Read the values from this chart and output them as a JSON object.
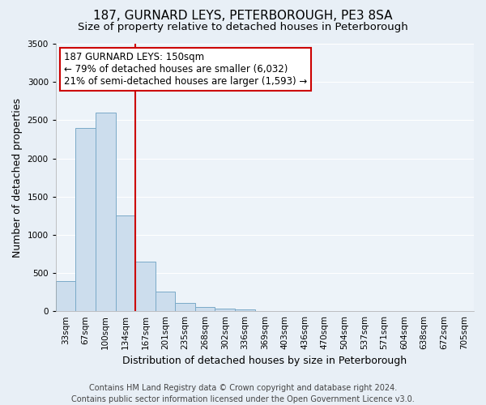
{
  "title": "187, GURNARD LEYS, PETERBOROUGH, PE3 8SA",
  "subtitle": "Size of property relative to detached houses in Peterborough",
  "xlabel": "Distribution of detached houses by size in Peterborough",
  "ylabel": "Number of detached properties",
  "bar_color": "#ccdded",
  "bar_edge_color": "#7aaac8",
  "categories": [
    "33sqm",
    "67sqm",
    "100sqm",
    "134sqm",
    "167sqm",
    "201sqm",
    "235sqm",
    "268sqm",
    "302sqm",
    "336sqm",
    "369sqm",
    "403sqm",
    "436sqm",
    "470sqm",
    "504sqm",
    "537sqm",
    "571sqm",
    "604sqm",
    "638sqm",
    "672sqm",
    "705sqm"
  ],
  "values": [
    390,
    2400,
    2600,
    1250,
    650,
    260,
    110,
    55,
    30,
    20,
    0,
    0,
    0,
    0,
    0,
    0,
    0,
    0,
    0,
    0,
    0
  ],
  "ylim": [
    0,
    3500
  ],
  "yticks": [
    0,
    500,
    1000,
    1500,
    2000,
    2500,
    3000,
    3500
  ],
  "vline_pos": 4.0,
  "vline_color": "#cc0000",
  "annotation_line1": "187 GURNARD LEYS: 150sqm",
  "annotation_line2": "← 79% of detached houses are smaller (6,032)",
  "annotation_line3": "21% of semi-detached houses are larger (1,593) →",
  "annotation_box_facecolor": "#ffffff",
  "annotation_box_edgecolor": "#cc0000",
  "footer_line1": "Contains HM Land Registry data © Crown copyright and database right 2024.",
  "footer_line2": "Contains public sector information licensed under the Open Government Licence v3.0.",
  "background_color": "#e8eff6",
  "plot_bg_color": "#edf3f9",
  "grid_color": "#ffffff",
  "title_fontsize": 11,
  "subtitle_fontsize": 9.5,
  "xlabel_fontsize": 9,
  "ylabel_fontsize": 9,
  "tick_fontsize": 7.5,
  "footer_fontsize": 7,
  "annotation_fontsize": 8.5
}
